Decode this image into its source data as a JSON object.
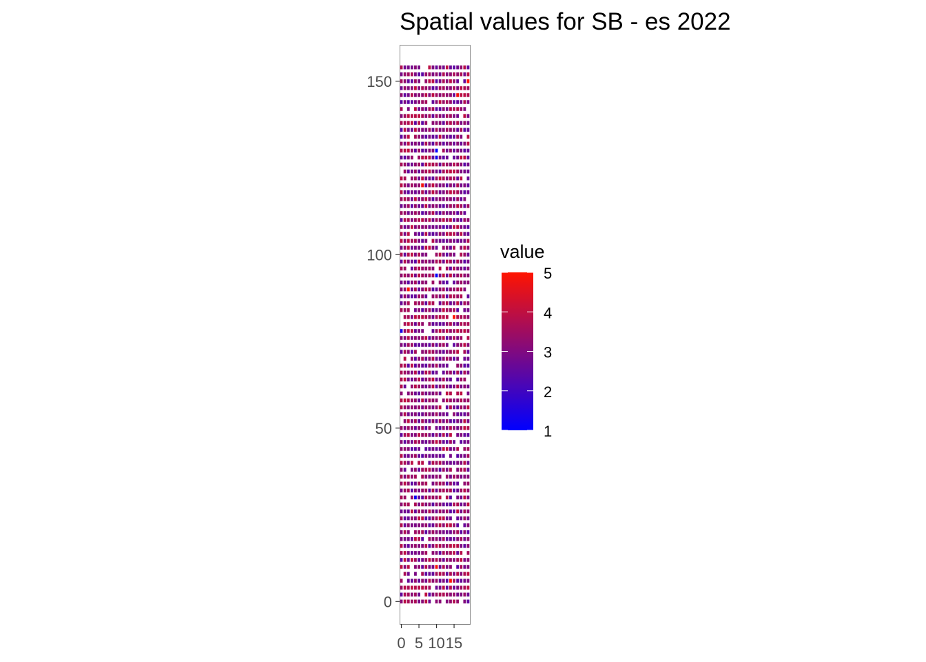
{
  "chart_data": {
    "type": "heatmap",
    "title": "Spatial values for SB - es 2022",
    "xlabel": "",
    "ylabel": "",
    "xlim": [
      -0.5,
      19.5
    ],
    "ylim": [
      -6.5,
      160.5
    ],
    "x_ticks": [
      0,
      5,
      10,
      15
    ],
    "x_tick_labels": [
      "0",
      "5",
      "10",
      "15"
    ],
    "y_ticks": [
      0,
      50,
      100,
      150
    ],
    "y_tick_labels": [
      "0",
      "50",
      "100",
      "150"
    ],
    "grid": false,
    "grid_columns": 20,
    "grid_rows": 78,
    "row_step": 2,
    "cell_value_typical": 3.2,
    "cell_value_spread": 0.5,
    "missing_fraction": 0.05,
    "legend": {
      "title": "value",
      "min": 1,
      "max": 5,
      "ticks": [
        1,
        2,
        3,
        4,
        5
      ],
      "tick_labels": [
        "1",
        "2",
        "3",
        "4",
        "5"
      ],
      "position": "right",
      "color_low": "#0000ff",
      "color_high": "#ff0000"
    },
    "notable_cells": [
      {
        "x": 10,
        "y": 130,
        "value": 1.0
      },
      {
        "x": 10,
        "y": 128,
        "value": 1.3
      },
      {
        "x": 10,
        "y": 94,
        "value": 1.1
      },
      {
        "x": 4,
        "y": 30,
        "value": 1.2
      },
      {
        "x": 0,
        "y": 78,
        "value": 1.4
      },
      {
        "x": 19,
        "y": 150,
        "value": 5.0
      },
      {
        "x": 2,
        "y": 90,
        "value": 5.0
      },
      {
        "x": 15,
        "y": 82,
        "value": 5.0
      },
      {
        "x": 14,
        "y": 6,
        "value": 5.0
      },
      {
        "x": 10,
        "y": 10,
        "value": 4.9
      },
      {
        "x": 16,
        "y": 146,
        "value": 4.8
      },
      {
        "x": 6,
        "y": 120,
        "value": 4.8
      }
    ]
  }
}
